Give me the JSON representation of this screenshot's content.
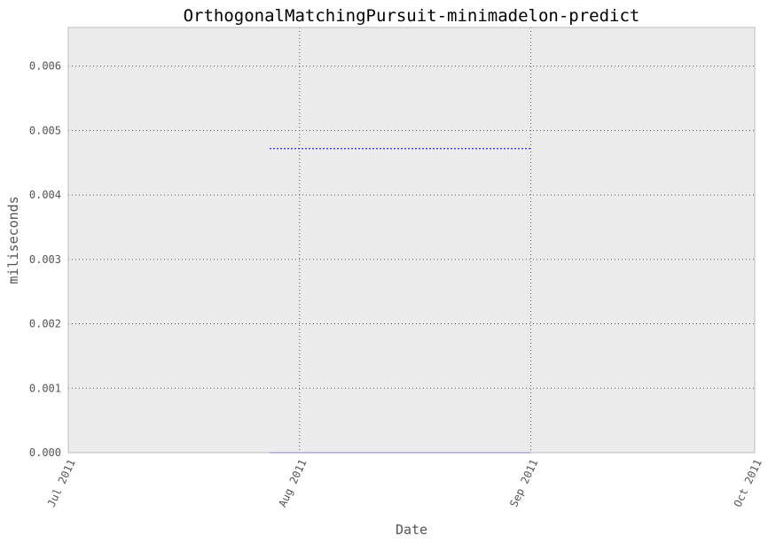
{
  "chart_data": {
    "type": "line",
    "title": "OrthogonalMatchingPursuit-minimadelon-predict",
    "xlabel": "Date",
    "ylabel": "miliseconds",
    "x_ticks": [
      "Jul 2011",
      "Aug 2011",
      "Sep 2011",
      "Oct 2011"
    ],
    "y_ticks": [
      "0.000",
      "0.001",
      "0.002",
      "0.003",
      "0.004",
      "0.005",
      "0.006"
    ],
    "xlim": [
      "2011-07-01",
      "2011-10-01"
    ],
    "ylim": [
      0,
      0.0066
    ],
    "grid": true,
    "series": [
      {
        "style": "dotted",
        "color": "#0000ff",
        "x": [
          "2011-07-28",
          "2011-09-01"
        ],
        "y": [
          0.00472,
          0.00472
        ]
      },
      {
        "style": "solid",
        "color": "#8888ff",
        "x": [
          "2011-07-28",
          "2011-09-01"
        ],
        "y": [
          0.0,
          0.0
        ]
      }
    ],
    "colors": {
      "background": "#ececec",
      "frame": "#bbbbbb",
      "grid": "#555555"
    }
  }
}
